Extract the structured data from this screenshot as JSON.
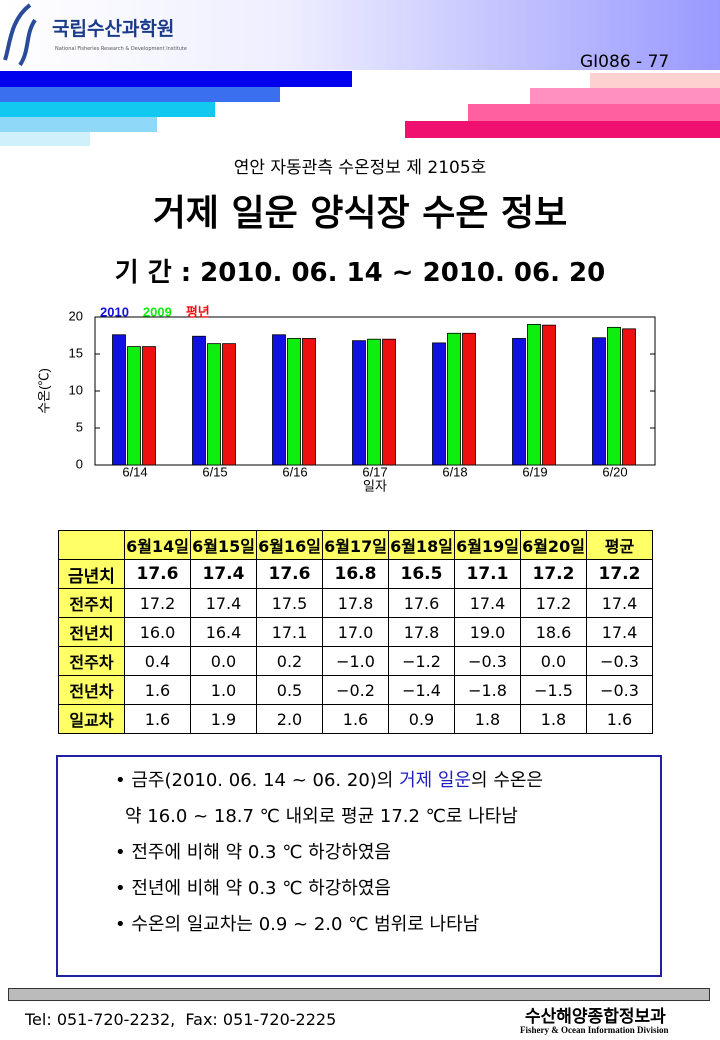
{
  "header": {
    "org": "국립수산과학원",
    "org_en": "National Fisheries Research & Development Institute",
    "doc_id": "GI086 - 77",
    "series_no": "연안 자동관측 수온정보 제 2105호",
    "title": "거제 일운 양식장 수온 정보",
    "period": "기 간 : 2010. 06. 14 ~ 2010. 06. 20"
  },
  "chart_data": {
    "type": "bar",
    "y_label": "수온(℃)",
    "x_label": "일자",
    "categories": [
      "6/14",
      "6/15",
      "6/16",
      "6/17",
      "6/18",
      "6/19",
      "6/20"
    ],
    "series": [
      {
        "name": "2010",
        "color": "#1010e0",
        "values": [
          17.6,
          17.4,
          17.6,
          16.8,
          16.5,
          17.1,
          17.2
        ]
      },
      {
        "name": "2009",
        "color": "#10ee10",
        "values": [
          16.0,
          16.4,
          17.1,
          17.0,
          17.8,
          19.0,
          18.6
        ]
      },
      {
        "name": "평년",
        "color": "#ee1010",
        "values": [
          16.0,
          16.4,
          17.1,
          17.0,
          17.8,
          18.9,
          18.4
        ]
      }
    ],
    "ylim": [
      0,
      20
    ],
    "yticks": [
      0,
      5,
      10,
      15,
      20
    ]
  },
  "table": {
    "header": [
      "",
      "6월14일",
      "6월15일",
      "6월16일",
      "6월17일",
      "6월18일",
      "6월19일",
      "6월20일",
      "평균"
    ],
    "rows": [
      [
        "금년치",
        "17.6",
        "17.4",
        "17.6",
        "16.8",
        "16.5",
        "17.1",
        "17.2",
        "17.2"
      ],
      [
        "전주치",
        "17.2",
        "17.4",
        "17.5",
        "17.8",
        "17.6",
        "17.4",
        "17.2",
        "17.4"
      ],
      [
        "전년치",
        "16.0",
        "16.4",
        "17.1",
        "17.0",
        "17.8",
        "19.0",
        "18.6",
        "17.4"
      ],
      [
        "전주차",
        "0.4",
        "0.0",
        "0.2",
        "−1.0",
        "−1.2",
        "−0.3",
        "0.0",
        "−0.3"
      ],
      [
        "전년차",
        "1.6",
        "1.0",
        "0.5",
        "−0.2",
        "−1.4",
        "−1.8",
        "−1.5",
        "−0.3"
      ],
      [
        "일교차",
        "1.6",
        "1.9",
        "2.0",
        "1.6",
        "0.9",
        "1.8",
        "1.8",
        "1.6"
      ]
    ]
  },
  "summary": {
    "line1": [
      "금주(2010. 06. 14 ~ 06. 20)의 ",
      "거제 일운",
      "의 수온은"
    ],
    "line2": "약 16.0 ~ 18.7 ℃ 내외로 평균 17.2 ℃로 나타남",
    "items": [
      "전주에 비해 약 0.3 ℃ 하강하였음",
      "전년에 비해 약 0.3 ℃ 하강하였음",
      "수온의 일교차는 0.9 ~ 2.0 ℃ 범위로 나타남"
    ]
  },
  "footer": {
    "contact": "Tel: 051-720-2232,  Fax: 051-720-2225",
    "division": "수산해양종합정보과",
    "division_en": "Fishery & Ocean Information Division"
  }
}
